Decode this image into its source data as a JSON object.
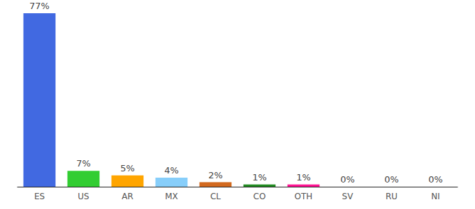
{
  "chart_data": {
    "type": "bar",
    "categories": [
      "ES",
      "US",
      "AR",
      "MX",
      "CL",
      "CO",
      "OTH",
      "SV",
      "RU",
      "NI"
    ],
    "values": [
      77,
      7,
      5,
      4,
      2,
      1,
      1,
      0,
      0,
      0
    ],
    "value_labels": [
      "77%",
      "7%",
      "5%",
      "4%",
      "2%",
      "1%",
      "1%",
      "0%",
      "0%",
      "0%"
    ],
    "colors": [
      "#4169e1",
      "#32cd32",
      "#ffa500",
      "#87cefa",
      "#d2691e",
      "#228b22",
      "#ff1493",
      "#9932cc",
      "#dc143c",
      "#1e90ff"
    ],
    "data_labels": true,
    "tick_labels": "x",
    "grid": false
  }
}
